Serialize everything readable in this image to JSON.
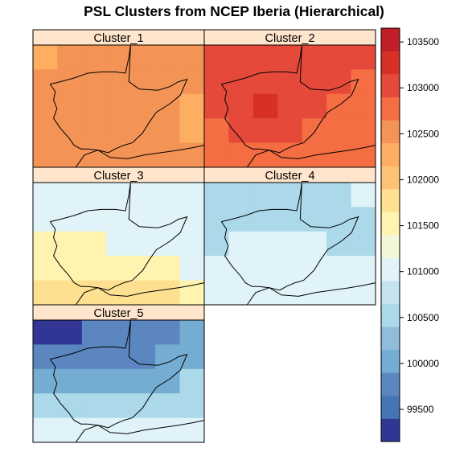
{
  "chart_data": {
    "type": "heatmap",
    "title": "PSL Clusters from NCEP Iberia (Hierarchical)",
    "panels": [
      {
        "label": "Cluster_1",
        "grid": [
          [
            102200,
            102400,
            102400,
            102400,
            102400,
            102400,
            102400
          ],
          [
            102400,
            102400,
            102400,
            102400,
            102400,
            102400,
            102400
          ],
          [
            102400,
            102400,
            102600,
            102600,
            102400,
            102400,
            102200
          ],
          [
            102400,
            102400,
            102400,
            102400,
            102400,
            102400,
            102200
          ],
          [
            102400,
            102400,
            102400,
            102400,
            102400,
            102400,
            102400
          ]
        ]
      },
      {
        "label": "Cluster_2",
        "grid": [
          [
            102900,
            102900,
            102900,
            102900,
            102900,
            102900,
            102900
          ],
          [
            102900,
            102900,
            102900,
            102900,
            102900,
            102900,
            102700
          ],
          [
            102900,
            102900,
            103300,
            102900,
            102900,
            102700,
            102700
          ],
          [
            102700,
            102900,
            102900,
            102900,
            102700,
            102700,
            102700
          ],
          [
            102700,
            102700,
            102700,
            102700,
            102700,
            102700,
            102700
          ]
        ]
      },
      {
        "label": "Cluster_3",
        "grid": [
          [
            100900,
            100900,
            100900,
            100900,
            101100,
            101100,
            101100
          ],
          [
            101100,
            101100,
            101100,
            101100,
            101100,
            101100,
            101100
          ],
          [
            101400,
            101400,
            101400,
            101100,
            101100,
            101100,
            101100
          ],
          [
            101400,
            101400,
            101400,
            101400,
            101400,
            101400,
            101100
          ],
          [
            101700,
            101700,
            101700,
            101700,
            101700,
            101700,
            101400
          ]
        ]
      },
      {
        "label": "Cluster_4",
        "grid": [
          [
            100400,
            100400,
            100400,
            100600,
            100600,
            100600,
            100900
          ],
          [
            100600,
            100600,
            100600,
            100600,
            100600,
            100600,
            100600
          ],
          [
            100600,
            100900,
            100900,
            100900,
            100900,
            100600,
            100600
          ],
          [
            100900,
            100900,
            100900,
            100900,
            100900,
            100900,
            100900
          ],
          [
            101100,
            101100,
            101100,
            101100,
            101100,
            101100,
            101100
          ]
        ]
      },
      {
        "label": "Cluster_5",
        "grid": [
          [
            99300,
            99300,
            99800,
            99800,
            99800,
            99800,
            100000
          ],
          [
            99800,
            99800,
            99800,
            99800,
            99800,
            100000,
            100000
          ],
          [
            100000,
            100000,
            100000,
            100000,
            100000,
            100000,
            100400
          ],
          [
            100400,
            100400,
            100400,
            100400,
            100400,
            100400,
            100600
          ],
          [
            100900,
            100900,
            100900,
            100900,
            100900,
            100900,
            100900
          ]
        ]
      }
    ],
    "colorbar": {
      "breaks": [
        99150,
        99400,
        99650,
        99900,
        100150,
        100400,
        100650,
        100900,
        101150,
        101400,
        101650,
        101900,
        102150,
        102400,
        102650,
        102900,
        103150,
        103400,
        103650
      ],
      "colors": [
        "#313695",
        "#4575B4",
        "#5B86C0",
        "#74ADD1",
        "#92BDDA",
        "#ABD9E9",
        "#C4E3EE",
        "#E0F3F8",
        "#F1F8D8",
        "#FEF4B0",
        "#FEE090",
        "#FDC274",
        "#FDAE61",
        "#F49356",
        "#F46D43",
        "#E4493A",
        "#D73027",
        "#C01F28",
        "#A50026"
      ],
      "ticks": [
        99500,
        100000,
        100500,
        101000,
        101500,
        102000,
        102500,
        103000,
        103500
      ],
      "tick_labels": [
        "99500",
        "100000",
        "100500",
        "101000",
        "101500",
        "102000",
        "102500",
        "103000",
        "103500"
      ]
    },
    "strip_color": "#FFE5CC",
    "coastline_color": "#000000"
  }
}
